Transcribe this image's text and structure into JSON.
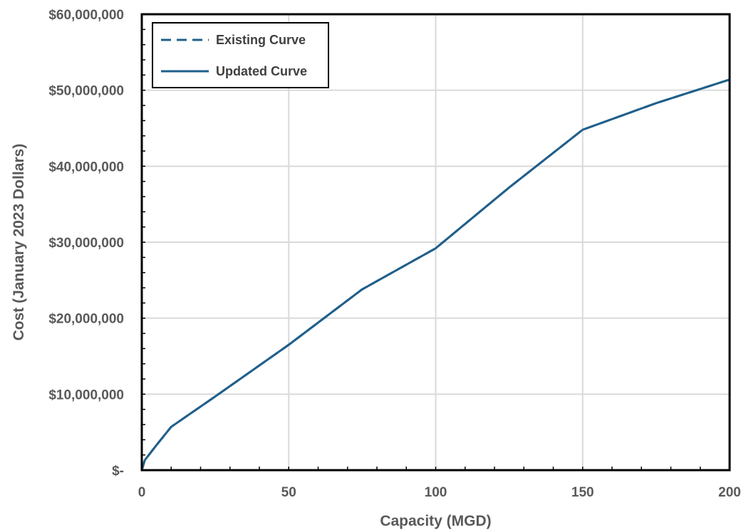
{
  "chart_data": {
    "type": "line",
    "title": "",
    "xlabel": "Capacity (MGD)",
    "ylabel": "Cost (January 2023 Dollars)",
    "xlim": [
      0,
      200
    ],
    "ylim": [
      0,
      60000000
    ],
    "x_ticks": [
      0,
      50,
      100,
      150,
      200
    ],
    "x_tick_labels": [
      "0",
      "50",
      "100",
      "150",
      "200"
    ],
    "y_ticks": [
      0,
      10000000,
      20000000,
      30000000,
      40000000,
      50000000,
      60000000
    ],
    "y_tick_labels": [
      "$-",
      "$10,000,000",
      "$20,000,000",
      "$30,000,000",
      "$40,000,000",
      "$50,000,000",
      "$60,000,000"
    ],
    "grid": true,
    "legend_position": "top-left",
    "series": [
      {
        "name": "Existing Curve",
        "style": "dashed",
        "color": "#1f5f8b",
        "x": [
          0,
          1,
          5,
          10,
          25,
          50,
          75,
          100,
          125,
          150,
          175,
          200
        ],
        "y": [
          0,
          1300000,
          3300000,
          5700000,
          9700000,
          16500000,
          23800000,
          29200000,
          37200000,
          44800000,
          48300000,
          51400000
        ]
      },
      {
        "name": "Updated Curve",
        "style": "solid",
        "color": "#1f5f8b",
        "x": [
          0,
          1,
          5,
          10,
          25,
          50,
          75,
          100,
          125,
          150,
          175,
          200
        ],
        "y": [
          0,
          1300000,
          3300000,
          5700000,
          9700000,
          16500000,
          23800000,
          29200000,
          37200000,
          44800000,
          48300000,
          51400000
        ]
      }
    ]
  }
}
